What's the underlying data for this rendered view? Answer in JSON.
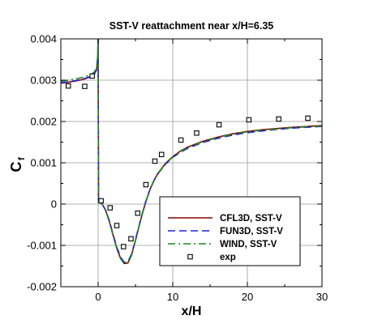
{
  "chart_data": {
    "type": "line",
    "title": "SST-V reattachment near x/H=6.35",
    "xlabel": "x/H",
    "ylabel_main": "C",
    "ylabel_sub": "f",
    "xlim": [
      -5,
      30
    ],
    "ylim": [
      -0.002,
      0.004
    ],
    "xticks": [
      0,
      10,
      20,
      30
    ],
    "xtick_labels": [
      "0",
      "10",
      "20",
      "30"
    ],
    "yticks": [
      -0.002,
      -0.001,
      0,
      0.001,
      0.002,
      0.003,
      0.004
    ],
    "ytick_labels": [
      "-0.002",
      "-0.001",
      "0",
      "0.001",
      "0.002",
      "0.003",
      "0.004"
    ],
    "grid": true,
    "legend_position": "lower-right",
    "series": [
      {
        "name": "CFL3D, SST-V",
        "style": "solid",
        "color": "#8b0000",
        "x": [
          -5,
          -4,
          -3,
          -2,
          -1,
          -0.5,
          -0.2,
          -0.05,
          0,
          0.05,
          0.3,
          0.6,
          1.0,
          1.5,
          2.0,
          2.5,
          3.0,
          3.5,
          4.0,
          4.5,
          5.0,
          5.5,
          6.0,
          6.5,
          7.0,
          7.5,
          8.0,
          9.0,
          10.0,
          11.0,
          12.0,
          14.0,
          16.0,
          18.0,
          20.0,
          22.0,
          24.0,
          26.0,
          28.0,
          30.0
        ],
        "y": [
          0.00293,
          0.00295,
          0.00298,
          0.00302,
          0.00308,
          0.00315,
          0.00325,
          0.0036,
          0.004,
          5e-05,
          4e-05,
          -2e-05,
          -0.00015,
          -0.00042,
          -0.00075,
          -0.00107,
          -0.00131,
          -0.00144,
          -0.00142,
          -0.00122,
          -0.00088,
          -0.00052,
          -0.00018,
          0.00012,
          0.00038,
          0.00058,
          0.00074,
          0.00098,
          0.00115,
          0.00128,
          0.00138,
          0.00152,
          0.00162,
          0.0017,
          0.00176,
          0.0018,
          0.00183,
          0.00186,
          0.00188,
          0.0019
        ]
      },
      {
        "name": "FUN3D, SST-V",
        "style": "dashed",
        "color": "#2222dd",
        "x": [
          -5,
          -4,
          -3,
          -2,
          -1,
          -0.5,
          -0.2,
          -0.05,
          0,
          0.05,
          0.3,
          0.6,
          1.0,
          1.5,
          2.0,
          2.5,
          3.0,
          3.5,
          4.0,
          4.5,
          5.0,
          5.5,
          6.0,
          6.5,
          7.0,
          7.5,
          8.0,
          9.0,
          10.0,
          11.0,
          12.0,
          14.0,
          16.0,
          18.0,
          20.0,
          22.0,
          24.0,
          26.0,
          28.0,
          30.0
        ],
        "y": [
          0.00294,
          0.00296,
          0.00299,
          0.00303,
          0.00309,
          0.00316,
          0.00326,
          0.0036,
          0.004,
          5e-05,
          4e-05,
          -2e-05,
          -0.00014,
          -0.0004,
          -0.00073,
          -0.00104,
          -0.00128,
          -0.00141,
          -0.00139,
          -0.0012,
          -0.00087,
          -0.00051,
          -0.00017,
          0.00013,
          0.00038,
          0.00058,
          0.00073,
          0.00096,
          0.00113,
          0.00125,
          0.00135,
          0.00149,
          0.00159,
          0.00167,
          0.00173,
          0.00177,
          0.00181,
          0.00184,
          0.00186,
          0.00188
        ]
      },
      {
        "name": "WIND, SST-V",
        "style": "dashdot",
        "color": "#1a8a1a",
        "x": [
          -5,
          -4,
          -3,
          -2,
          -1,
          -0.5,
          -0.2,
          -0.05,
          0,
          0.05,
          0.3,
          0.6,
          1.0,
          1.5,
          2.0,
          2.5,
          3.0,
          3.5,
          4.0,
          4.5,
          5.0,
          5.5,
          6.0,
          6.5,
          7.0,
          7.5,
          8.0,
          9.0,
          10.0,
          11.0,
          12.0,
          14.0,
          16.0,
          18.0,
          20.0,
          22.0,
          24.0,
          26.0,
          28.0,
          30.0
        ],
        "y": [
          0.00298,
          0.003,
          0.00303,
          0.00307,
          0.00313,
          0.0032,
          0.0033,
          0.0036,
          0.004,
          5e-05,
          4e-05,
          -2e-05,
          -0.00016,
          -0.00043,
          -0.00076,
          -0.00108,
          -0.00132,
          -0.00145,
          -0.00143,
          -0.00123,
          -0.00089,
          -0.00053,
          -0.00019,
          0.00011,
          0.00037,
          0.00057,
          0.00073,
          0.00097,
          0.00114,
          0.00127,
          0.00137,
          0.00151,
          0.00161,
          0.00169,
          0.00175,
          0.00179,
          0.00182,
          0.00185,
          0.00187,
          0.00189
        ]
      }
    ],
    "experiment": {
      "name": "exp",
      "marker": "square",
      "x": [
        -4,
        -1.8,
        -0.8,
        0.4,
        1.6,
        2.5,
        3.4,
        4.4,
        5.3,
        6.4,
        7.6,
        8.5,
        11.1,
        13.2,
        16.2,
        20.2,
        24.2,
        28.1
      ],
      "y": [
        0.00286,
        0.00285,
        0.0031,
        8e-05,
        -9e-05,
        -0.00052,
        -0.00103,
        -0.00084,
        -0.00022,
        0.00047,
        0.00104,
        0.0012,
        0.00155,
        0.00172,
        0.00192,
        0.00204,
        0.00206,
        0.00208
      ]
    }
  }
}
